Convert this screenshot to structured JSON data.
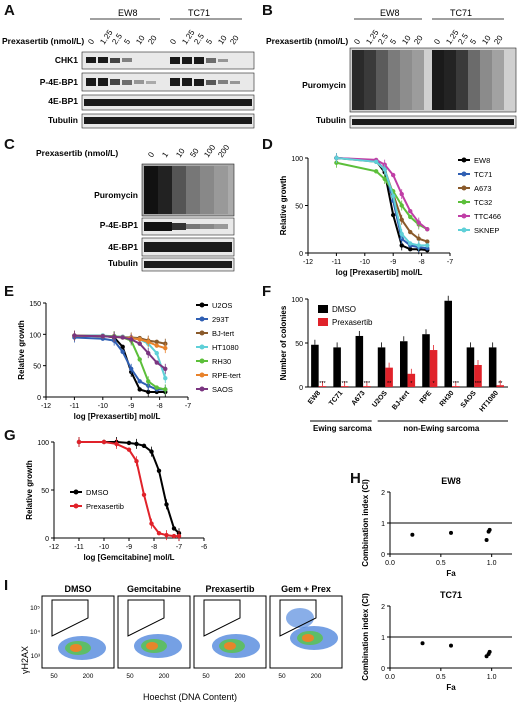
{
  "panels": {
    "A": {
      "letter": "A",
      "groups": [
        "EW8",
        "TC71"
      ],
      "treatment_label": "Prexasertib (nmol/L)",
      "doses": [
        "0",
        "1.25",
        "2.5",
        "5",
        "10",
        "20"
      ],
      "rows": [
        "CHK1",
        "P-4E-BP1",
        "4E-BP1",
        "Tubulin"
      ]
    },
    "B": {
      "letter": "B",
      "groups": [
        "EW8",
        "TC71"
      ],
      "treatment_label": "Prexasertib (nmol/L)",
      "doses": [
        "0",
        "1.25",
        "2.5",
        "5",
        "10",
        "20"
      ],
      "rows": [
        "Puromycin",
        "Tubulin"
      ]
    },
    "C": {
      "letter": "C",
      "treatment_label": "Prexasertib (nmol/L)",
      "doses": [
        "0",
        "1",
        "10",
        "50",
        "100",
        "200"
      ],
      "rows": [
        "Puromycin",
        "P-4E-BP1",
        "4E-BP1",
        "Tubulin"
      ]
    },
    "D": {
      "letter": "D"
    },
    "E": {
      "letter": "E"
    },
    "F": {
      "letter": "F",
      "groups": [
        "Ewing sarcoma",
        "non-Ewing sarcoma"
      ]
    },
    "G": {
      "letter": "G"
    },
    "H": {
      "letter": "H"
    },
    "I": {
      "letter": "I",
      "plots": [
        "DMSO",
        "Gemcitabine",
        "Prexasertib",
        "Gem + Prex"
      ],
      "ylabel": "γH2AX",
      "xlabel": "Hoechst (DNA Content)",
      "xticks": [
        "50",
        "200"
      ],
      "yticks": [
        "10⁵",
        "10⁴",
        "10³"
      ]
    }
  },
  "chart_data": [
    {
      "id": "D",
      "type": "line",
      "xlabel": "log [Prexasertib] mol/L",
      "ylabel": "Relative growth",
      "xlim": [
        -12,
        -7
      ],
      "ylim": [
        0,
        100
      ],
      "xticks": [
        "-12",
        "-11",
        "-10",
        "-9",
        "-8",
        "-7"
      ],
      "yticks": [
        "0",
        "50",
        "100"
      ],
      "x": [
        -11,
        -9.6,
        -9.3,
        -9.0,
        -8.7,
        -8.4,
        -8.1,
        -7.8
      ],
      "series": [
        {
          "name": "EW8",
          "color": "#000000",
          "values": [
            100,
            97,
            85,
            40,
            8,
            4,
            4,
            3
          ]
        },
        {
          "name": "TC71",
          "color": "#2f5fb3",
          "values": [
            100,
            97,
            88,
            55,
            15,
            8,
            6,
            5
          ]
        },
        {
          "name": "A673",
          "color": "#8a5a2b",
          "values": [
            100,
            96,
            88,
            62,
            35,
            22,
            15,
            12
          ]
        },
        {
          "name": "TC32",
          "color": "#5cbf3a",
          "values": [
            95,
            86,
            78,
            65,
            50,
            38,
            30,
            25
          ]
        },
        {
          "name": "TTC466",
          "color": "#c03fa6",
          "values": [
            100,
            98,
            93,
            82,
            62,
            44,
            32,
            25
          ]
        },
        {
          "name": "SKNEP",
          "color": "#5fd0d8",
          "values": [
            100,
            96,
            88,
            60,
            20,
            10,
            8,
            8
          ]
        }
      ],
      "legend": "right"
    },
    {
      "id": "E",
      "type": "line",
      "xlabel": "log [Prexasertib] mol/L",
      "ylabel": "Relative growth",
      "xlim": [
        -12,
        -7
      ],
      "ylim": [
        0,
        150
      ],
      "xticks": [
        "-12",
        "-11",
        "-10",
        "-9",
        "-8",
        "-7"
      ],
      "yticks": [
        "0",
        "50",
        "100",
        "150"
      ],
      "x": [
        -11,
        -10,
        -9.6,
        -9.3,
        -9.0,
        -8.7,
        -8.4,
        -8.1,
        -7.8
      ],
      "series": [
        {
          "name": "U2OS",
          "color": "#000000",
          "values": [
            98,
            98,
            95,
            80,
            40,
            12,
            8,
            8,
            8
          ]
        },
        {
          "name": "293T",
          "color": "#2f5fb3",
          "values": [
            95,
            93,
            90,
            72,
            45,
            25,
            18,
            12,
            12
          ]
        },
        {
          "name": "BJ-tert",
          "color": "#8a5a2b",
          "values": [
            98,
            97,
            97,
            96,
            95,
            94,
            90,
            88,
            85
          ]
        },
        {
          "name": "HT1080",
          "color": "#5fd0d8",
          "values": [
            98,
            98,
            97,
            96,
            94,
            92,
            85,
            70,
            30
          ]
        },
        {
          "name": "RH30",
          "color": "#5cbf3a",
          "values": [
            98,
            97,
            97,
            95,
            90,
            60,
            25,
            15,
            12
          ]
        },
        {
          "name": "RPE-tert",
          "color": "#e8822b",
          "values": [
            98,
            97,
            96,
            95,
            94,
            92,
            88,
            82,
            78
          ]
        },
        {
          "name": "SAOS",
          "color": "#7a3580",
          "values": [
            98,
            97,
            96,
            95,
            92,
            85,
            70,
            55,
            45
          ]
        }
      ],
      "legend": "right"
    },
    {
      "id": "F",
      "type": "bar",
      "ylabel": "Number of colonies",
      "ylim": [
        0,
        100
      ],
      "yticks": [
        "0",
        "50",
        "100"
      ],
      "categories": [
        "EW8",
        "TC71",
        "A673",
        "U2OS",
        "BJ-tert",
        "RPE",
        "RH30",
        "SAOS",
        "HT1080"
      ],
      "series": [
        {
          "name": "DMSO",
          "color": "#000000",
          "values": [
            48,
            45,
            58,
            45,
            52,
            60,
            98,
            45,
            45
          ]
        },
        {
          "name": "Prexasertib",
          "color": "#e0222a",
          "values": [
            1,
            1,
            1,
            22,
            15,
            42,
            1,
            25,
            2
          ]
        }
      ],
      "significance": [
        "***",
        "***",
        "***",
        "**",
        "*",
        "*",
        "***",
        "***",
        "**"
      ],
      "legend": "top-left"
    },
    {
      "id": "G",
      "type": "line",
      "xlabel": "log [Gemcitabine] mol/L",
      "ylabel": "Relative growth",
      "xlim": [
        -12,
        -6
      ],
      "ylim": [
        0,
        100
      ],
      "xticks": [
        "-12",
        "-11",
        "-10",
        "-9",
        "-8",
        "-7",
        "-6"
      ],
      "yticks": [
        "0",
        "50",
        "100"
      ],
      "x": [
        -11,
        -10,
        -9.5,
        -9,
        -8.7,
        -8.4,
        -8.1,
        -7.8,
        -7.5,
        -7.2,
        -7.0
      ],
      "series": [
        {
          "name": "DMSO",
          "color": "#000000",
          "values": [
            100,
            100,
            100,
            99,
            98,
            96,
            90,
            70,
            35,
            10,
            5
          ]
        },
        {
          "name": "Prexasertib",
          "color": "#e0222a",
          "values": [
            100,
            100,
            98,
            92,
            80,
            45,
            15,
            5,
            3,
            2,
            2
          ]
        }
      ],
      "legend": "left"
    },
    {
      "id": "H1",
      "type": "scatter",
      "title": "EW8",
      "xlabel": "Fa",
      "ylabel": "Combination index (CI)",
      "xlim": [
        0,
        1.2
      ],
      "ylim": [
        0,
        2
      ],
      "xticks": [
        "0.0",
        "0.5",
        "1.0"
      ],
      "yticks": [
        "0",
        "1",
        "2"
      ],
      "refline": 1,
      "x": [
        0.22,
        0.6,
        0.95,
        0.97,
        0.98
      ],
      "y": [
        0.62,
        0.68,
        0.45,
        0.72,
        0.78
      ]
    },
    {
      "id": "H2",
      "type": "scatter",
      "title": "TC71",
      "xlabel": "Fa",
      "ylabel": "Combination index (CI)",
      "xlim": [
        0,
        1.2
      ],
      "ylim": [
        0,
        2
      ],
      "xticks": [
        "0.0",
        "0.5",
        "1.0"
      ],
      "yticks": [
        "0",
        "1",
        "2"
      ],
      "refline": 1,
      "x": [
        0.32,
        0.6,
        0.95,
        0.97,
        0.98
      ],
      "y": [
        0.8,
        0.72,
        0.38,
        0.45,
        0.52
      ]
    }
  ]
}
